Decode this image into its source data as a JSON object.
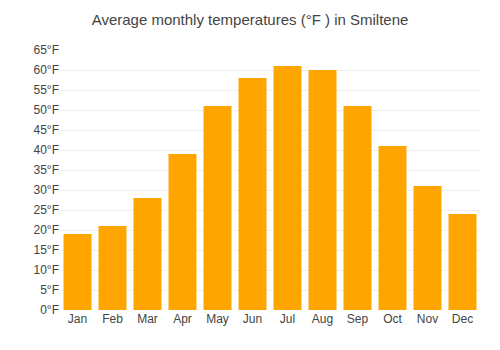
{
  "chart_data": {
    "type": "bar",
    "title": "Average monthly temperatures (°F ) in Smiltene",
    "categories": [
      "Jan",
      "Feb",
      "Mar",
      "Apr",
      "May",
      "Jun",
      "Jul",
      "Aug",
      "Sep",
      "Oct",
      "Nov",
      "Dec"
    ],
    "values": [
      19,
      21,
      28,
      39,
      51,
      58,
      61,
      60,
      51,
      41,
      31,
      24
    ],
    "color": "#FFA500",
    "ylim": [
      0,
      65
    ],
    "yticks": [
      {
        "value": 0,
        "label": "0°F"
      },
      {
        "value": 5,
        "label": "5°F"
      },
      {
        "value": 10,
        "label": "10°F"
      },
      {
        "value": 15,
        "label": "15°F"
      },
      {
        "value": 20,
        "label": "20°F"
      },
      {
        "value": 25,
        "label": "25°F"
      },
      {
        "value": 30,
        "label": "30°F"
      },
      {
        "value": 35,
        "label": "35°F"
      },
      {
        "value": 40,
        "label": "40°F"
      },
      {
        "value": 45,
        "label": "45°F"
      },
      {
        "value": 50,
        "label": "50°F"
      },
      {
        "value": 55,
        "label": "55°F"
      },
      {
        "value": 60,
        "label": "60°F"
      },
      {
        "value": 65,
        "label": "65°F"
      }
    ],
    "grid": true
  }
}
